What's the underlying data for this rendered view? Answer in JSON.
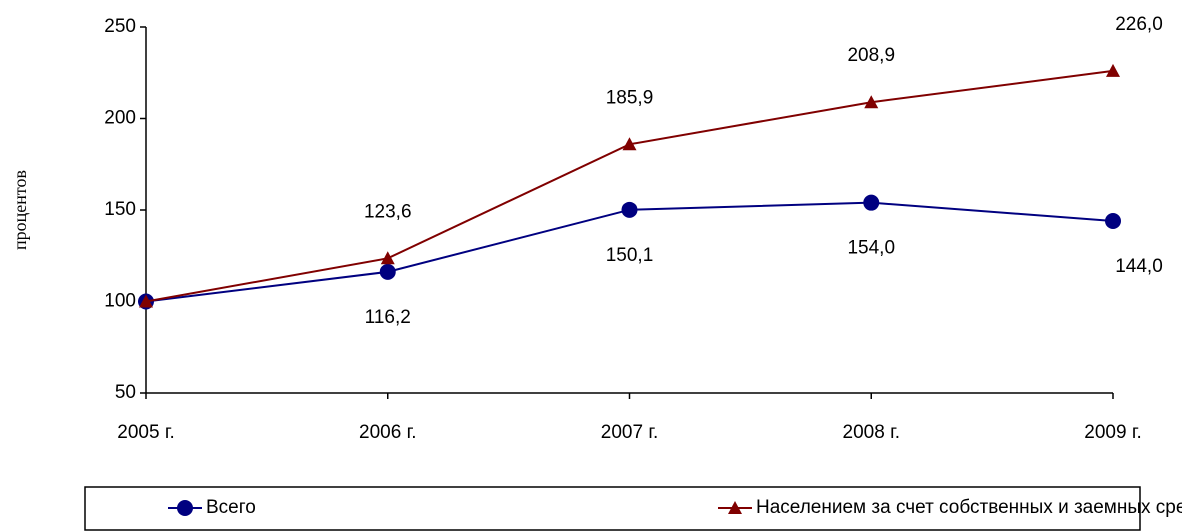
{
  "chart_data": {
    "type": "line",
    "y_label": "процентов",
    "categories": [
      "2005 г.",
      "2006 г.",
      "2007 г.",
      "2008 г.",
      "2009 г."
    ],
    "series": [
      {
        "name": "Всего",
        "color": "#000080",
        "marker": "circle",
        "values": [
          100,
          116.2,
          150.1,
          154.0,
          144.0
        ],
        "value_labels": [
          null,
          "116,2",
          "150,1",
          "154,0",
          "144,0"
        ]
      },
      {
        "name": "Населением за счет собственных и заемных средств",
        "color": "#800000",
        "marker": "triangle",
        "values": [
          100,
          123.6,
          185.9,
          208.9,
          226.0
        ],
        "value_labels": [
          null,
          "123,6",
          "185,9",
          "208,9",
          "226,0"
        ]
      }
    ],
    "ylim": [
      50,
      250
    ],
    "yticks": [
      50,
      100,
      150,
      200,
      250
    ],
    "grid": false,
    "legend": "bottom"
  }
}
